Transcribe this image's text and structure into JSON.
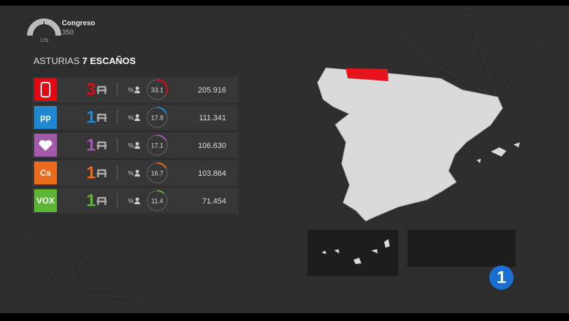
{
  "header": {
    "chamber": "Congreso",
    "total_seats": "350",
    "majority": "176"
  },
  "region": {
    "name": "ASTURIAS",
    "seats": "7 ESCAÑOS"
  },
  "table": {
    "rows": [
      {
        "logo": "",
        "seats": "3",
        "pct_symbol": "%",
        "pct": 33.1,
        "votes": "205.916",
        "color": "#e30613"
      },
      {
        "logo": "pp",
        "seats": "1",
        "pct_symbol": "%",
        "pct": 17.9,
        "votes": "111.341",
        "color": "#1e88d0"
      },
      {
        "logo": "",
        "seats": "1",
        "pct_symbol": "%",
        "pct": 17.1,
        "votes": "106.630",
        "color": "#a25aa8"
      },
      {
        "logo": "Cs",
        "seats": "1",
        "pct_symbol": "%",
        "pct": 16.7,
        "votes": "103.864",
        "color": "#ec6a1c"
      },
      {
        "logo": "VOX",
        "seats": "1",
        "pct_symbol": "%",
        "pct": 11.4,
        "votes": "71.454",
        "color": "#5cb634"
      }
    ]
  },
  "channel_logo": "1"
}
